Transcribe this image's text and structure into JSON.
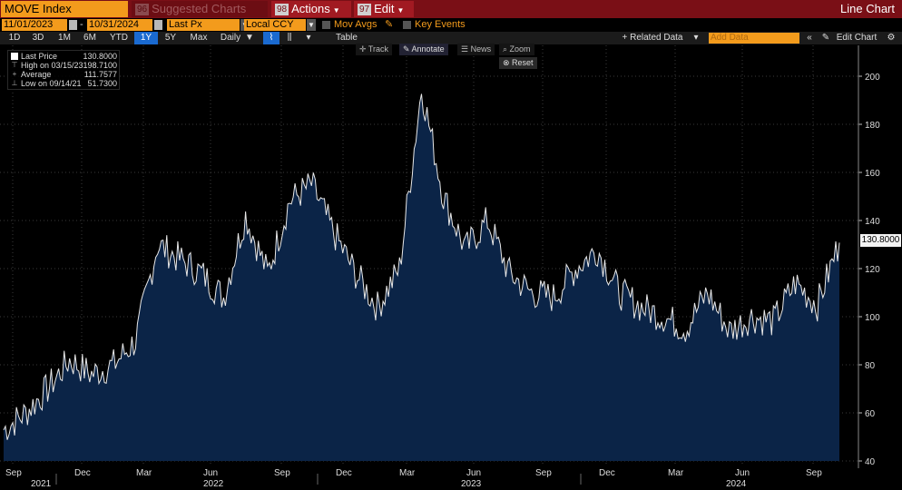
{
  "header": {
    "security": "MOVE Index",
    "menus": [
      {
        "num": "96",
        "label": "Suggested Charts",
        "dim": true
      },
      {
        "num": "98",
        "label": "Actions",
        "dim": false
      },
      {
        "num": "97",
        "label": "Edit",
        "dim": false
      }
    ],
    "view_title": "Line Chart"
  },
  "params": {
    "start_date": "11/01/2023",
    "end_date": "10/31/2024",
    "field": "Last Px",
    "currency": "Local CCY",
    "mov_avgs": "Mov Avgs",
    "key_events": "Key Events"
  },
  "timebar": {
    "ranges": [
      "1D",
      "3D",
      "1M",
      "6M",
      "YTD",
      "1Y",
      "5Y",
      "Max"
    ],
    "selected": "1Y",
    "period": "Daily",
    "table": "Table",
    "related": "+ Related Data",
    "add_placeholder": "Add Data",
    "edit_chart": "Edit Chart"
  },
  "tools": {
    "track": "Track",
    "annotate": "Annotate",
    "news": "News",
    "zoom": "Zoom",
    "reset": "Reset"
  },
  "legend": {
    "last_label": "Last Price",
    "last_value": "130.8000",
    "high_label": "High on 03/15/23",
    "high_value": "198.7100",
    "avg_label": "Average",
    "avg_value": "111.7577",
    "low_label": "Low on 09/14/21",
    "low_value": "51.7300"
  },
  "last_tag": "130.8000",
  "colors": {
    "accent": "#f39b1c",
    "header": "#7a0f16",
    "fill": "#0b2447",
    "line": "#e8e8e8",
    "selected": "#1a6ad0"
  },
  "chart_data": {
    "type": "area",
    "series": [
      {
        "name": "Last Price",
        "x": [
          "2021-08",
          "2021-09",
          "2021-10",
          "2021-11",
          "2021-12",
          "2022-01",
          "2022-02",
          "2022-03",
          "2022-04",
          "2022-05",
          "2022-06",
          "2022-07",
          "2022-08",
          "2022-09",
          "2022-10",
          "2022-11",
          "2022-12",
          "2023-01",
          "2023-02",
          "2023-03",
          "2023-04",
          "2023-05",
          "2023-06",
          "2023-07",
          "2023-08",
          "2023-09",
          "2023-10",
          "2023-11",
          "2023-12",
          "2024-01",
          "2024-02",
          "2024-03",
          "2024-04",
          "2024-05",
          "2024-06",
          "2024-07",
          "2024-08",
          "2024-09",
          "2024-10"
        ],
        "values": [
          53,
          60,
          70,
          82,
          76,
          80,
          90,
          130,
          124,
          118,
          108,
          142,
          118,
          148,
          155,
          135,
          118,
          104,
          120,
          195,
          150,
          128,
          140,
          118,
          110,
          108,
          120,
          128,
          110,
          104,
          100,
          95,
          110,
          94,
          100,
          98,
          114,
          105,
          130.8
        ]
      }
    ],
    "x_tick_months": [
      "Sep",
      "Dec",
      "Mar",
      "Jun",
      "Sep",
      "Dec",
      "Mar",
      "Jun",
      "Sep",
      "Dec",
      "Mar",
      "Jun",
      "Sep"
    ],
    "x_tick_years": [
      "2021",
      "2022",
      "2023",
      "2024"
    ],
    "y_ticks": [
      40,
      60,
      80,
      100,
      120,
      140,
      160,
      180,
      200
    ],
    "ylim": [
      38,
      212
    ],
    "grid": true
  }
}
